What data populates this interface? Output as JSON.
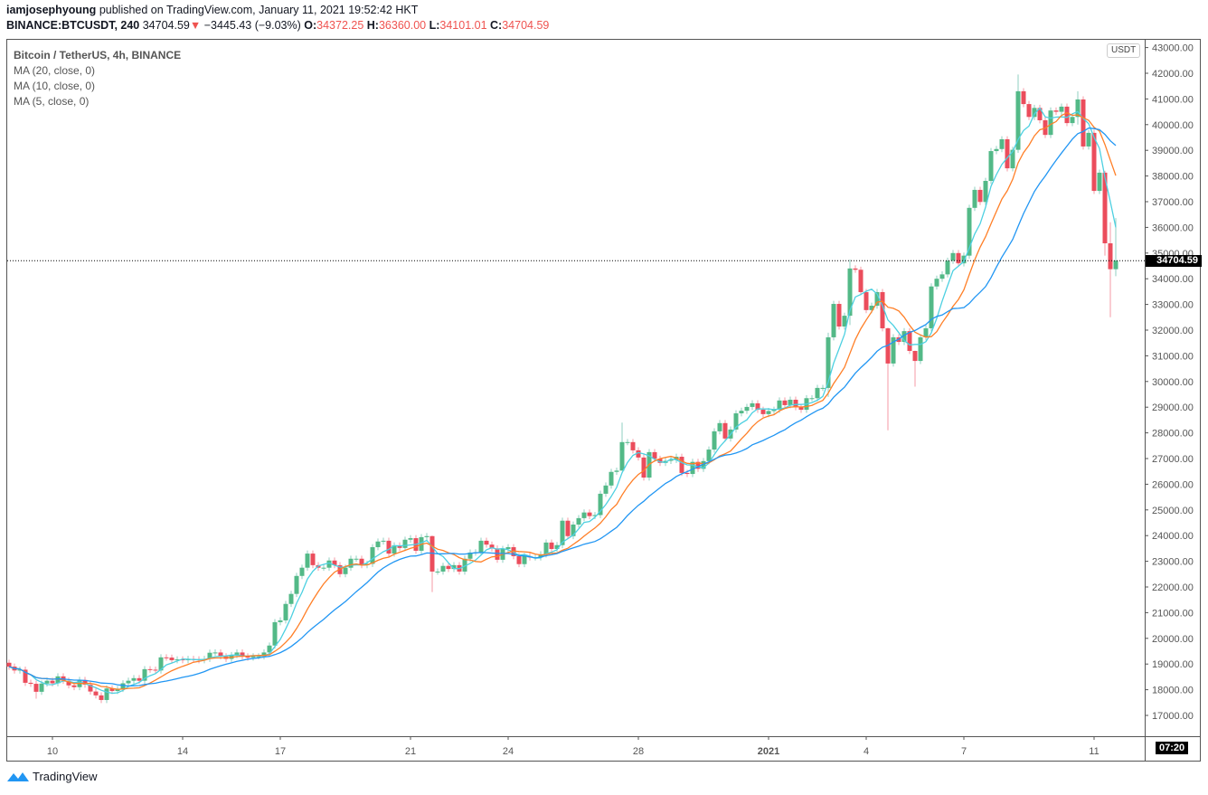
{
  "header": {
    "author": "iamjosephyoung",
    "published": "published on TradingView.com, January 11, 2021 19:52:42 HKT",
    "symbol": "BINANCE:BTCUSDT, 240",
    "last": "34704.59",
    "change": "−3445.43 (−9.03%)",
    "o_label": "O:",
    "o": "34372.25",
    "h_label": "H:",
    "h": "36360.00",
    "l_label": "L:",
    "l": "34101.01",
    "c_label": "C:",
    "c": "34704.59"
  },
  "legend": {
    "title": "Bitcoin / TetherUS, 4h, BINANCE",
    "ma20": "MA (20, close, 0)",
    "ma10": "MA (10, close, 0)",
    "ma5": "MA (5, close, 0)"
  },
  "price_axis": {
    "currency": "USDT",
    "current_price": "34704.59",
    "countdown": "07:20",
    "ticks": [
      "43000.00",
      "42000.00",
      "41000.00",
      "40000.00",
      "39000.00",
      "38000.00",
      "37000.00",
      "36000.00",
      "35000.00",
      "34000.00",
      "33000.00",
      "32000.00",
      "31000.00",
      "30000.00",
      "29000.00",
      "28000.00",
      "27000.00",
      "26000.00",
      "25000.00",
      "24000.00",
      "23000.00",
      "22000.00",
      "21000.00",
      "20000.00",
      "19000.00",
      "18000.00",
      "17000.00"
    ]
  },
  "footer": {
    "brand": "TradingView"
  },
  "colors": {
    "up": "#53b987",
    "down": "#eb4d5c",
    "ma5": "#4dd0e1",
    "ma10": "#ff7f27",
    "ma20": "#2196f3"
  },
  "chart_data": {
    "type": "candlestick",
    "interval": "4h",
    "x_ticks": [
      "10",
      "14",
      "17",
      "21",
      "24",
      "28",
      "2021",
      "4",
      "7",
      "11"
    ],
    "ylim": [
      16500,
      43500
    ],
    "grid": false,
    "first_open": 19050,
    "close": [
      18900,
      18750,
      18780,
      18270,
      18230,
      17920,
      18240,
      18350,
      18250,
      18520,
      18350,
      18170,
      18100,
      18380,
      18200,
      17930,
      17780,
      17600,
      18050,
      17950,
      18030,
      18250,
      18350,
      18450,
      18350,
      18800,
      18780,
      18750,
      19260,
      19250,
      19150,
      19180,
      19150,
      19200,
      19180,
      19150,
      19200,
      19440,
      19450,
      19300,
      19200,
      19350,
      19450,
      19300,
      19250,
      19300,
      19300,
      19450,
      19720,
      20630,
      20700,
      21340,
      21730,
      22430,
      22750,
      23300,
      22850,
      22750,
      22750,
      23030,
      22850,
      22500,
      22750,
      23100,
      23100,
      22850,
      22900,
      23550,
      23770,
      23800,
      23300,
      23620,
      23520,
      23840,
      23900,
      23410,
      23940,
      23980,
      22600,
      22600,
      22820,
      22700,
      22850,
      22600,
      23100,
      23340,
      23350,
      23800,
      23650,
      23500,
      23060,
      23480,
      23550,
      23200,
      22890,
      23200,
      23150,
      23150,
      23270,
      23730,
      23480,
      23630,
      24580,
      23980,
      24430,
      24680,
      24900,
      24760,
      24800,
      25630,
      25950,
      26480,
      26530,
      27640,
      27640,
      27320,
      27040,
      26260,
      27250,
      26990,
      26830,
      26910,
      26950,
      27070,
      26440,
      26400,
      26870,
      26600,
      26900,
      27350,
      28060,
      28380,
      27780,
      28130,
      28760,
      28860,
      29010,
      29150,
      28900,
      28730,
      28850,
      28900,
      29260,
      29080,
      29290,
      29000,
      28900,
      29350,
      29350,
      29750,
      29750,
      31720,
      33020,
      32140,
      32560,
      34400,
      34350,
      33480,
      32780,
      32950,
      33480,
      32070,
      30700,
      31720,
      31540,
      31960,
      31190,
      30800,
      31720,
      32070,
      33700,
      34000,
      34170,
      34700,
      35000,
      34600,
      34900,
      36760,
      37460,
      36990,
      37810,
      38970,
      39050,
      39430,
      38300,
      39020,
      41300,
      40800,
      40300,
      40650,
      40170,
      39600,
      40550,
      40500,
      40700,
      40060,
      40300,
      40980,
      39150,
      39680,
      37420,
      38130,
      35380,
      34372.25,
      34704.59
    ],
    "notable_wicks": {
      "5": [
        18350,
        17650
      ],
      "78": [
        24000,
        21800
      ],
      "113": [
        28400,
        27400
      ],
      "151": [
        31900,
        29400
      ],
      "155": [
        34750,
        32200
      ],
      "162": [
        32100,
        28100
      ],
      "167": [
        31200,
        29800
      ],
      "186": [
        41950,
        38900
      ],
      "197": [
        41300,
        40000
      ],
      "202": [
        38200,
        34900
      ],
      "203": [
        36200,
        32500
      ],
      "204": [
        36360.0,
        34101.01
      ]
    },
    "moving_averages": [
      {
        "name": "MA (5, close, 0)",
        "period": 5
      },
      {
        "name": "MA (10, close, 0)",
        "period": 10
      },
      {
        "name": "MA (20, close, 0)",
        "period": 20
      }
    ]
  }
}
